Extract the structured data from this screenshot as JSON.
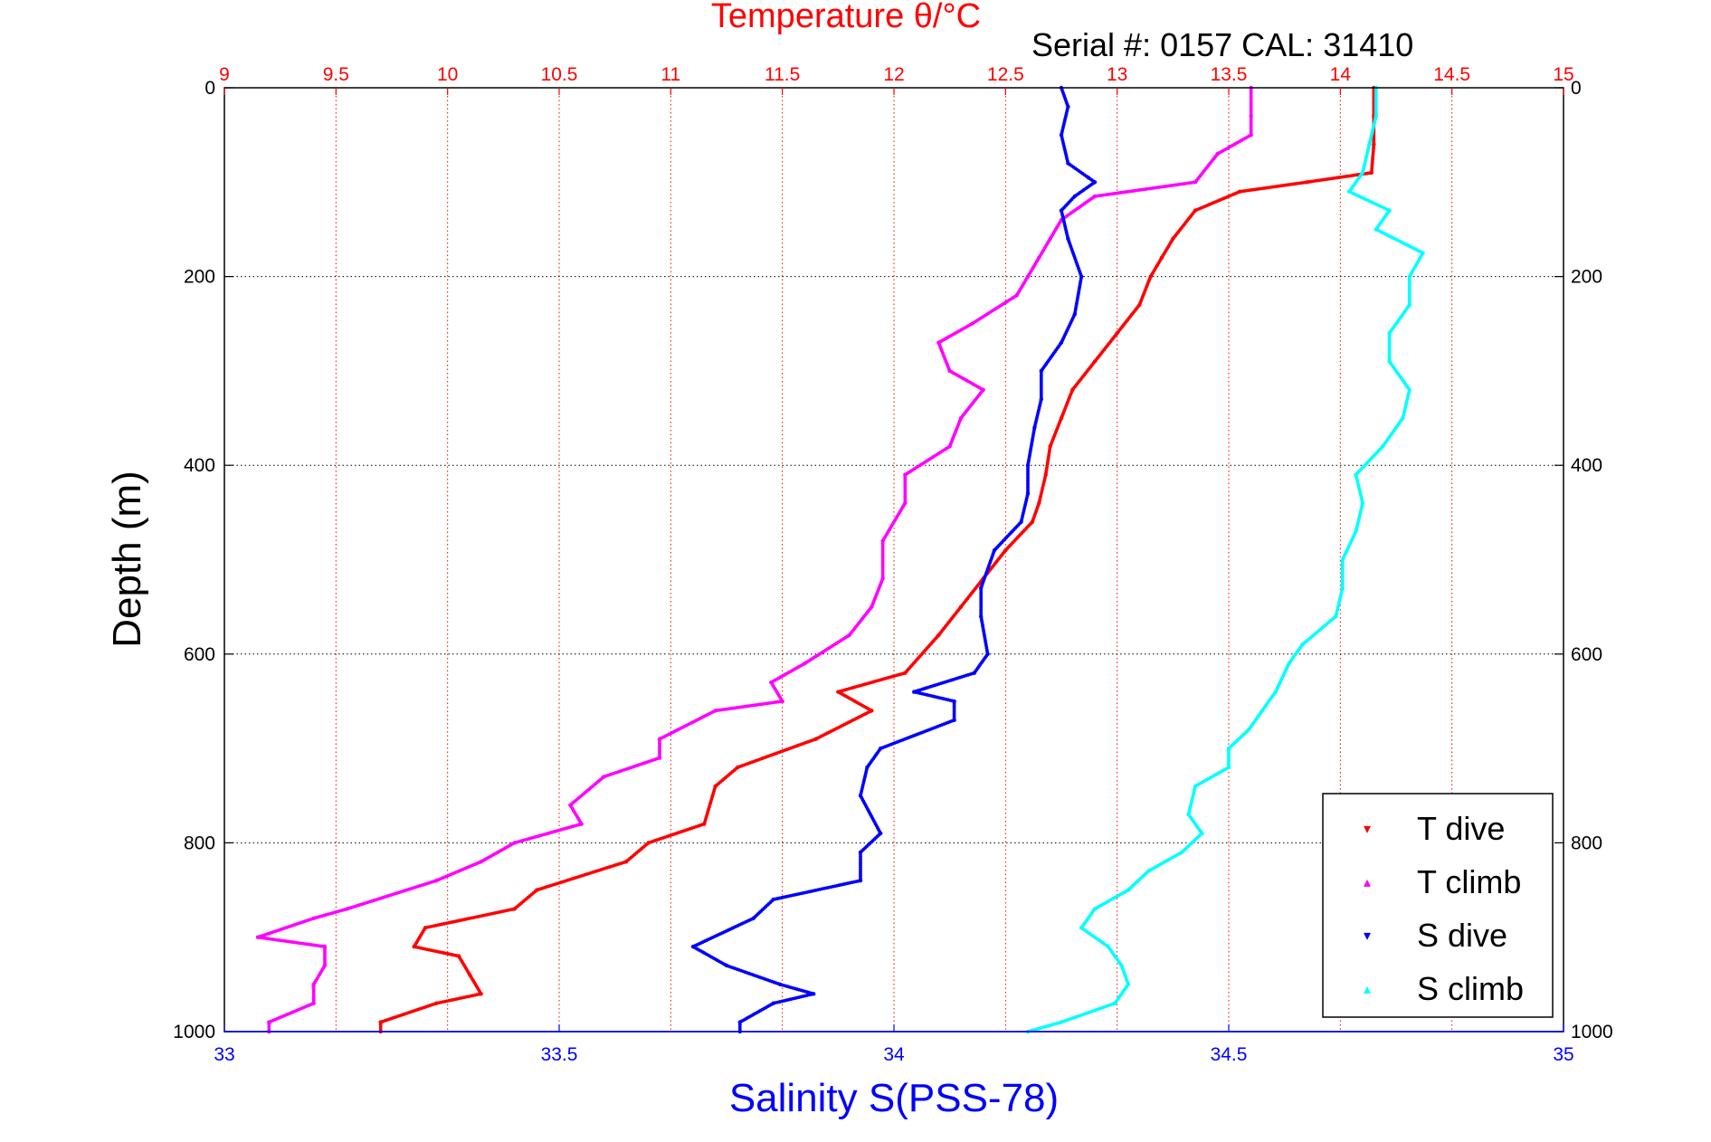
{
  "chart_data": {
    "type": "scatter",
    "title_top": "Temperature θ/°C",
    "serial_text": "Serial #: 0157  CAL: 31410",
    "ylabel": "Depth (m)",
    "xlabel_bottom": "Salinity S(PSS-78)",
    "y_axis": {
      "range": [
        0,
        1000
      ],
      "inverted": true,
      "ticks": [
        0,
        200,
        400,
        600,
        800,
        1000
      ],
      "tick_labels": [
        "0",
        "200",
        "400",
        "600",
        "800",
        "1000"
      ],
      "grid": true
    },
    "x_top": {
      "range": [
        9,
        15
      ],
      "ticks": [
        9,
        9.5,
        10,
        10.5,
        11,
        11.5,
        12,
        12.5,
        13,
        13.5,
        14,
        14.5,
        15
      ],
      "tick_labels": [
        "9",
        "9.5",
        "10",
        "10.5",
        "11",
        "11.5",
        "12",
        "12.5",
        "13",
        "13.5",
        "14",
        "14.5",
        "15"
      ],
      "color": "#ff0000",
      "grid": true
    },
    "x_bottom": {
      "range": [
        33,
        35
      ],
      "ticks": [
        33,
        33.5,
        34,
        34.5,
        35
      ],
      "tick_labels": [
        "33",
        "33.5",
        "34",
        "34.5",
        "35"
      ],
      "color": "#0000ff"
    },
    "legend_position": "bottom-right",
    "series": [
      {
        "name": "T dive",
        "color": "#ff0000",
        "axis": "top",
        "points": [
          [
            14.15,
            0
          ],
          [
            14.15,
            30
          ],
          [
            14.15,
            60
          ],
          [
            14.14,
            90
          ],
          [
            13.85,
            100
          ],
          [
            13.55,
            110
          ],
          [
            13.35,
            130
          ],
          [
            13.25,
            160
          ],
          [
            13.2,
            180
          ],
          [
            13.15,
            200
          ],
          [
            13.1,
            230
          ],
          [
            13.0,
            260
          ],
          [
            12.9,
            290
          ],
          [
            12.8,
            320
          ],
          [
            12.75,
            350
          ],
          [
            12.7,
            380
          ],
          [
            12.68,
            410
          ],
          [
            12.65,
            440
          ],
          [
            12.62,
            460
          ],
          [
            12.5,
            490
          ],
          [
            12.4,
            520
          ],
          [
            12.3,
            550
          ],
          [
            12.2,
            580
          ],
          [
            12.05,
            620
          ],
          [
            11.75,
            640
          ],
          [
            11.9,
            660
          ],
          [
            11.65,
            690
          ],
          [
            11.3,
            720
          ],
          [
            11.2,
            740
          ],
          [
            11.15,
            780
          ],
          [
            10.9,
            800
          ],
          [
            10.8,
            820
          ],
          [
            10.4,
            850
          ],
          [
            10.3,
            870
          ],
          [
            9.9,
            890
          ],
          [
            9.85,
            910
          ],
          [
            10.05,
            920
          ],
          [
            10.1,
            940
          ],
          [
            10.15,
            960
          ],
          [
            9.95,
            970
          ],
          [
            9.7,
            990
          ],
          [
            9.7,
            1000
          ]
        ]
      },
      {
        "name": "T climb",
        "color": "#ff00ff",
        "axis": "top",
        "points": [
          [
            13.6,
            0
          ],
          [
            13.6,
            30
          ],
          [
            13.6,
            50
          ],
          [
            13.45,
            70
          ],
          [
            13.35,
            100
          ],
          [
            12.9,
            115
          ],
          [
            12.75,
            140
          ],
          [
            12.7,
            160
          ],
          [
            12.65,
            180
          ],
          [
            12.6,
            200
          ],
          [
            12.55,
            220
          ],
          [
            12.35,
            250
          ],
          [
            12.2,
            270
          ],
          [
            12.25,
            300
          ],
          [
            12.4,
            320
          ],
          [
            12.3,
            350
          ],
          [
            12.25,
            380
          ],
          [
            12.05,
            410
          ],
          [
            12.05,
            440
          ],
          [
            11.95,
            480
          ],
          [
            11.95,
            520
          ],
          [
            11.9,
            550
          ],
          [
            11.8,
            580
          ],
          [
            11.6,
            610
          ],
          [
            11.45,
            630
          ],
          [
            11.5,
            650
          ],
          [
            11.2,
            660
          ],
          [
            10.95,
            690
          ],
          [
            10.95,
            710
          ],
          [
            10.7,
            730
          ],
          [
            10.55,
            760
          ],
          [
            10.6,
            780
          ],
          [
            10.3,
            800
          ],
          [
            10.15,
            820
          ],
          [
            9.95,
            840
          ],
          [
            9.55,
            870
          ],
          [
            9.4,
            880
          ],
          [
            9.15,
            900
          ],
          [
            9.45,
            910
          ],
          [
            9.45,
            930
          ],
          [
            9.4,
            950
          ],
          [
            9.4,
            970
          ],
          [
            9.2,
            990
          ],
          [
            9.2,
            1000
          ]
        ]
      },
      {
        "name": "S dive",
        "color": "#0000ff",
        "axis": "bottom",
        "points": [
          [
            34.25,
            0
          ],
          [
            34.26,
            20
          ],
          [
            34.25,
            50
          ],
          [
            34.26,
            80
          ],
          [
            34.29,
            95
          ],
          [
            34.3,
            100
          ],
          [
            34.27,
            115
          ],
          [
            34.25,
            130
          ],
          [
            34.26,
            160
          ],
          [
            34.28,
            200
          ],
          [
            34.27,
            240
          ],
          [
            34.25,
            270
          ],
          [
            34.22,
            300
          ],
          [
            34.22,
            330
          ],
          [
            34.21,
            360
          ],
          [
            34.2,
            400
          ],
          [
            34.2,
            430
          ],
          [
            34.19,
            460
          ],
          [
            34.15,
            490
          ],
          [
            34.13,
            530
          ],
          [
            34.13,
            560
          ],
          [
            34.14,
            600
          ],
          [
            34.12,
            620
          ],
          [
            34.03,
            640
          ],
          [
            34.09,
            650
          ],
          [
            34.09,
            670
          ],
          [
            33.98,
            700
          ],
          [
            33.96,
            720
          ],
          [
            33.95,
            750
          ],
          [
            33.98,
            790
          ],
          [
            33.95,
            810
          ],
          [
            33.95,
            840
          ],
          [
            33.82,
            860
          ],
          [
            33.79,
            880
          ],
          [
            33.7,
            910
          ],
          [
            33.75,
            930
          ],
          [
            33.83,
            950
          ],
          [
            33.88,
            960
          ],
          [
            33.82,
            970
          ],
          [
            33.77,
            990
          ],
          [
            33.77,
            1000
          ]
        ]
      },
      {
        "name": "S climb",
        "color": "#00ffff",
        "axis": "bottom",
        "points": [
          [
            34.72,
            0
          ],
          [
            34.72,
            30
          ],
          [
            34.71,
            60
          ],
          [
            34.7,
            90
          ],
          [
            34.68,
            110
          ],
          [
            34.74,
            130
          ],
          [
            34.72,
            150
          ],
          [
            34.79,
            175
          ],
          [
            34.77,
            200
          ],
          [
            34.77,
            230
          ],
          [
            34.74,
            260
          ],
          [
            34.74,
            290
          ],
          [
            34.77,
            320
          ],
          [
            34.76,
            350
          ],
          [
            34.73,
            380
          ],
          [
            34.69,
            410
          ],
          [
            34.7,
            440
          ],
          [
            34.69,
            470
          ],
          [
            34.67,
            500
          ],
          [
            34.67,
            530
          ],
          [
            34.66,
            560
          ],
          [
            34.61,
            590
          ],
          [
            34.59,
            610
          ],
          [
            34.57,
            640
          ],
          [
            34.55,
            660
          ],
          [
            34.53,
            680
          ],
          [
            34.5,
            700
          ],
          [
            34.5,
            720
          ],
          [
            34.45,
            740
          ],
          [
            34.44,
            770
          ],
          [
            34.46,
            790
          ],
          [
            34.43,
            810
          ],
          [
            34.38,
            830
          ],
          [
            34.35,
            850
          ],
          [
            34.3,
            870
          ],
          [
            34.28,
            890
          ],
          [
            34.32,
            910
          ],
          [
            34.34,
            930
          ],
          [
            34.35,
            950
          ],
          [
            34.33,
            970
          ],
          [
            34.25,
            990
          ],
          [
            34.2,
            1000
          ]
        ]
      }
    ]
  }
}
